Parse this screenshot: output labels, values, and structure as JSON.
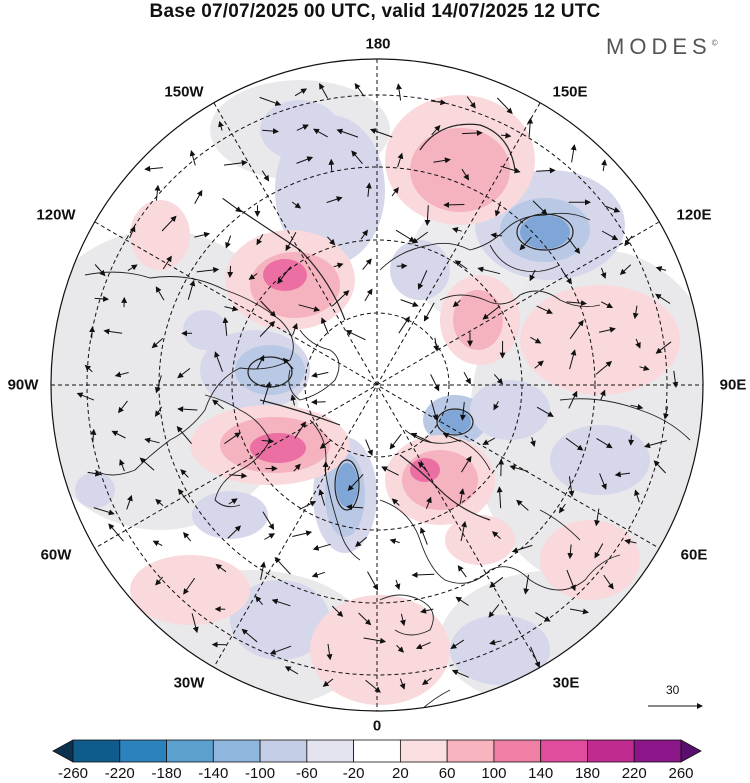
{
  "title": "Base 07/07/2025 00 UTC, valid 14/07/2025 12 UTC",
  "brand": "MODES",
  "brand_mark": "©",
  "longitude_labels": {
    "n180": "180",
    "nw150": "150W",
    "ne150": "150E",
    "w120": "120W",
    "e120": "120E",
    "w90": "90W",
    "e90": "90E",
    "w60": "60W",
    "e60": "60E",
    "w30": "30W",
    "e30": "30E",
    "s0": "0"
  },
  "reference_vector": "30",
  "colorbar": {
    "labels": [
      "-260",
      "-220",
      "-180",
      "-140",
      "-100",
      "-60",
      "-20",
      "20",
      "60",
      "100",
      "140",
      "180",
      "220",
      "260"
    ],
    "colors": [
      "#0b3350",
      "#0f5b8c",
      "#2b82bd",
      "#5ba1d0",
      "#8fb6dd",
      "#c3cde6",
      "#e4e4f1",
      "#ffffff",
      "#fcdfe0",
      "#f8b5bf",
      "#f07fa6",
      "#e24c9c",
      "#bf2b8f",
      "#8b168a",
      "#5a0e6e"
    ]
  },
  "palette": {
    "land_gray": "#e9e9eb",
    "lavender": "#d6d7ea",
    "pale_blue": "#b9c8e4",
    "mid_blue": "#7fa6d6",
    "deep_blue": "#4f86c4",
    "pale_pink": "#f9d9dc",
    "mid_pink": "#f5b2bf",
    "hot_pink": "#ec6fa4"
  }
}
